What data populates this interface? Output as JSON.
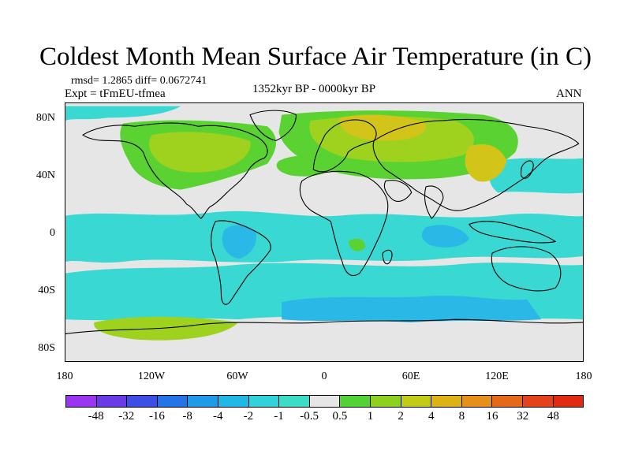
{
  "title": "Coldest Month Mean Surface Air Temperature (in C)",
  "stats": "rmsd= 1.2865 diff= 0.0672741",
  "experiment": "Expt = tFmEU-tfmea",
  "period": "1352kyr BP - 0000kyr BP",
  "season": "ANN",
  "lat_labels": [
    "80N",
    "40N",
    "0",
    "40S",
    "80S"
  ],
  "lon_labels": [
    "180",
    "120W",
    "60W",
    "0",
    "60E",
    "120E",
    "180"
  ],
  "colorbar": {
    "labels": [
      "-48",
      "-32",
      "-16",
      "-8",
      "-4",
      "-2",
      "-1",
      "-0.5",
      "0.5",
      "1",
      "2",
      "4",
      "8",
      "16",
      "32",
      "48"
    ],
    "colors": [
      "#9a36f0",
      "#6a3ae8",
      "#3c4ee6",
      "#2474e8",
      "#1e9ae8",
      "#22b8e6",
      "#32d2da",
      "#3cdcc6",
      "#e6e6e6",
      "#52d236",
      "#8ed020",
      "#c2cc18",
      "#dcb214",
      "#e4901a",
      "#e46a1a",
      "#e4421a",
      "#e02a12"
    ]
  },
  "map_colors": {
    "no_change": "#e6e6e6",
    "cool_small": "#3ad8d2",
    "cool_moderate": "#2ab8e6",
    "warm_small": "#5ad232",
    "warm_moderate": "#9ed21e",
    "warm_strong": "#d2c418",
    "coastline": "#000000"
  }
}
